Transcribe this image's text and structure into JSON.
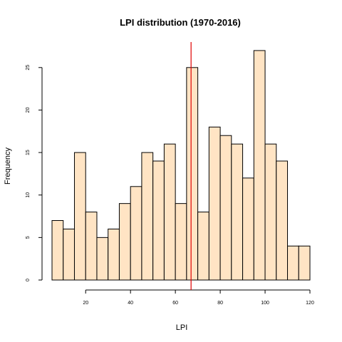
{
  "chart_data": {
    "type": "bar",
    "title": "LPI distribution (1970-2016)",
    "xlabel": "LPI",
    "ylabel": "Frequency",
    "bins": [
      {
        "start": 5,
        "end": 10,
        "count": 7
      },
      {
        "start": 10,
        "end": 15,
        "count": 6
      },
      {
        "start": 15,
        "end": 20,
        "count": 15
      },
      {
        "start": 20,
        "end": 25,
        "count": 8
      },
      {
        "start": 25,
        "end": 30,
        "count": 5
      },
      {
        "start": 30,
        "end": 35,
        "count": 6
      },
      {
        "start": 35,
        "end": 40,
        "count": 9
      },
      {
        "start": 40,
        "end": 45,
        "count": 11
      },
      {
        "start": 45,
        "end": 50,
        "count": 15
      },
      {
        "start": 50,
        "end": 55,
        "count": 14
      },
      {
        "start": 55,
        "end": 60,
        "count": 16
      },
      {
        "start": 60,
        "end": 65,
        "count": 9
      },
      {
        "start": 65,
        "end": 70,
        "count": 25
      },
      {
        "start": 70,
        "end": 75,
        "count": 8
      },
      {
        "start": 75,
        "end": 80,
        "count": 18
      },
      {
        "start": 80,
        "end": 85,
        "count": 17
      },
      {
        "start": 85,
        "end": 90,
        "count": 16
      },
      {
        "start": 90,
        "end": 95,
        "count": 12
      },
      {
        "start": 95,
        "end": 100,
        "count": 27
      },
      {
        "start": 100,
        "end": 105,
        "count": 16
      },
      {
        "start": 105,
        "end": 110,
        "count": 14
      },
      {
        "start": 110,
        "end": 115,
        "count": 4
      },
      {
        "start": 115,
        "end": 120,
        "count": 4
      }
    ],
    "xlim": [
      5,
      120
    ],
    "ylim": [
      0,
      28
    ],
    "x_ticks": [
      20,
      40,
      60,
      80,
      100,
      120
    ],
    "y_ticks": [
      0,
      5,
      10,
      15,
      20,
      25
    ],
    "reference_line": {
      "x": 67,
      "color": "#e00000"
    },
    "bar_fill": "#ffe4c4",
    "bar_stroke": "#000000",
    "grid": false,
    "legend": "none"
  }
}
